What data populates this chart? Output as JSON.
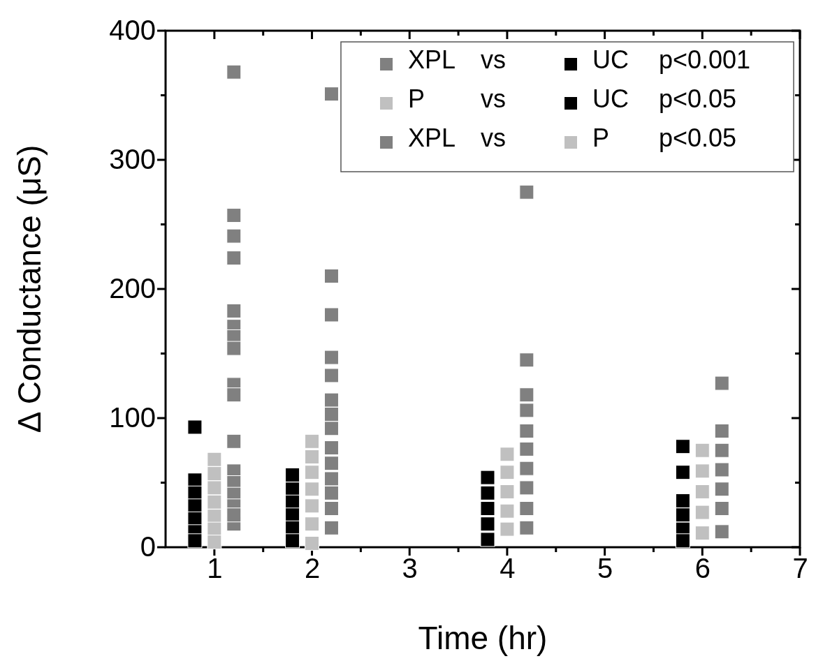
{
  "chart_data": {
    "type": "scatter",
    "xlabel": "Time (hr)",
    "ylabel": "Δ Conductance (μS)",
    "marker": "square",
    "xlim": [
      0.5,
      7
    ],
    "ylim": [
      0,
      400
    ],
    "xticks": [
      1,
      {
        "value": 1.5,
        "label": null
      },
      2,
      {
        "value": 2.5,
        "label": null
      },
      3,
      {
        "value": 3.5,
        "label": null
      },
      4,
      {
        "value": 4.5,
        "label": null
      },
      5,
      {
        "value": 5.5,
        "label": null
      },
      6,
      {
        "value": 6.5,
        "label": null
      },
      7
    ],
    "yticks": [
      0,
      {
        "value": 50,
        "label": null
      },
      100,
      {
        "value": 150,
        "label": null
      },
      200,
      {
        "value": 250,
        "label": null
      },
      300,
      {
        "value": 350,
        "label": null
      },
      400
    ],
    "series": [
      {
        "color": "#000000",
        "x": [
          0.8,
          0.8,
          0.8,
          0.8,
          0.8,
          0.8,
          0.8,
          1.8,
          1.8,
          1.8,
          1.8,
          1.8,
          1.8,
          3.8,
          3.8,
          3.8,
          3.8,
          3.8,
          5.8,
          5.8,
          5.8,
          5.8,
          5.8,
          5.8
        ],
        "values": [
          93,
          52,
          42,
          32,
          22,
          12,
          5,
          56,
          45,
          35,
          25,
          15,
          5,
          54,
          42,
          30,
          18,
          6,
          78,
          58,
          36,
          25,
          14,
          5
        ]
      },
      {
        "color": "#c0c0c0",
        "x": [
          1,
          1,
          1,
          1,
          1,
          1,
          1,
          2,
          2,
          2,
          2,
          2,
          2,
          2,
          4,
          4,
          4,
          4,
          4,
          6,
          6,
          6,
          6,
          6
        ],
        "values": [
          68,
          57,
          46,
          35,
          24,
          14,
          4,
          82,
          70,
          58,
          45,
          32,
          18,
          3,
          72,
          58,
          43,
          28,
          14,
          75,
          59,
          43,
          27,
          11
        ]
      },
      {
        "color": "#808080",
        "x": [
          1.2,
          1.2,
          1.2,
          1.2,
          1.2,
          1.2,
          1.2,
          1.2,
          1.2,
          1.2,
          1.2,
          1.2,
          1.2,
          1.2,
          1.2,
          1.2,
          1.2,
          2.2,
          2.2,
          2.2,
          2.2,
          2.2,
          2.2,
          2.2,
          2.2,
          2.2,
          2.2,
          2.2,
          2.2,
          2.2,
          2.2,
          4.2,
          4.2,
          4.2,
          4.2,
          4.2,
          4.2,
          4.2,
          4.2,
          4.2,
          4.2,
          6.2,
          6.2,
          6.2,
          6.2,
          6.2,
          6.2,
          6.2
        ],
        "values": [
          368,
          257,
          241,
          224,
          183,
          171,
          163,
          154,
          126,
          118,
          82,
          59,
          50,
          41,
          32,
          18,
          25,
          351,
          210,
          180,
          147,
          133,
          114,
          103,
          92,
          77,
          65,
          53,
          42,
          30,
          15,
          275,
          145,
          118,
          106,
          90,
          76,
          61,
          46,
          30,
          15,
          127,
          90,
          75,
          60,
          45,
          30,
          12
        ]
      }
    ],
    "annotations": [
      "XPL vs UC p<0.001",
      "P vs UC p<0.05",
      "XPL vs P p<0.05"
    ]
  }
}
